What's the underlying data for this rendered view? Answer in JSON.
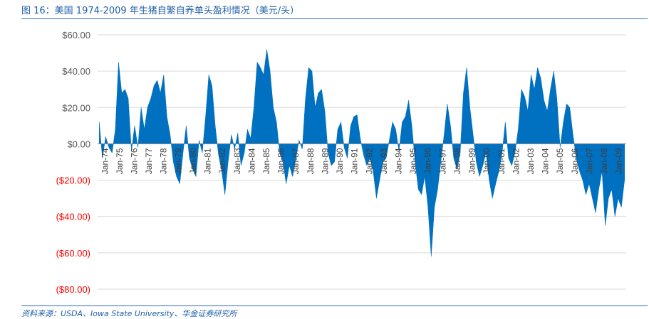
{
  "figure": {
    "title": "图 16：美国 1974-2009 年生猪自繁自养单头盈利情况（美元/头）",
    "source": "资料来源：USDA、Iowa State University、华金证券研究所"
  },
  "colors": {
    "area": "#0070c0",
    "negative_label": "#ff0000",
    "positive_label": "#595959",
    "grid": "#d9d9d9",
    "title": "#1f5fa8"
  },
  "chart_data": {
    "type": "area",
    "title": "",
    "xlabel": "",
    "ylabel": "",
    "ylim": [
      -80,
      60
    ],
    "grid": true,
    "legend": "none",
    "y_ticks": [
      {
        "value": 60,
        "label": "$60.00"
      },
      {
        "value": 40,
        "label": "$40.00"
      },
      {
        "value": 20,
        "label": "$20.00"
      },
      {
        "value": 0,
        "label": "$0.00"
      },
      {
        "value": -20,
        "label": "($20.00)"
      },
      {
        "value": -40,
        "label": "($40.00)"
      },
      {
        "value": -60,
        "label": "($60.00)"
      },
      {
        "value": -80,
        "label": "($80.00)"
      }
    ],
    "x_tick_labels": [
      "Jan-74",
      "Jan-75",
      "Jan-76",
      "Jan-77",
      "Jan-78",
      "Jan-79",
      "Jan-80",
      "Jan-81",
      "Jan-82",
      "Jan-83",
      "Jan-84",
      "Jan-85",
      "Jan-86",
      "Jan-87",
      "Jan-88",
      "Jan-89",
      "Jan-90",
      "Jan-91",
      "Jan-92",
      "Jan-93",
      "Jan-94",
      "Jan-95",
      "Jan-96",
      "Jan-97",
      "Jan-98",
      "Jan-99",
      "Jan-00",
      "Jan-01",
      "Jan-02",
      "Jan-03",
      "Jan-04",
      "Jan-05",
      "Jan-06",
      "Jan-07",
      "Jan-08",
      "Jan-09"
    ],
    "series": [
      {
        "x_start": "1974-01",
        "interval": "quarter",
        "values": [
          12,
          -8,
          4,
          -2,
          -5,
          8,
          45,
          28,
          30,
          25,
          -4,
          10,
          -2,
          20,
          8,
          20,
          25,
          32,
          35,
          28,
          38,
          15,
          5,
          -10,
          -18,
          -22,
          -5,
          10,
          -8,
          -14,
          -18,
          2,
          -5,
          15,
          38,
          32,
          10,
          -6,
          -15,
          -28,
          -10,
          5,
          -3,
          6,
          -12,
          -5,
          8,
          3,
          20,
          45,
          42,
          38,
          52,
          40,
          20,
          12,
          -5,
          -10,
          -22,
          -12,
          -18,
          -8,
          2,
          -3,
          25,
          42,
          40,
          20,
          28,
          30,
          18,
          -5,
          -12,
          -10,
          8,
          12,
          -2,
          -8,
          10,
          15,
          16,
          3,
          -6,
          -12,
          -8,
          -15,
          -30,
          -20,
          -10,
          -8,
          2,
          12,
          8,
          -4,
          12,
          15,
          24,
          10,
          -10,
          -25,
          -28,
          -18,
          -35,
          -62,
          -35,
          -25,
          -10,
          5,
          22,
          10,
          -8,
          -14,
          -5,
          28,
          42,
          20,
          5,
          -10,
          -18,
          -12,
          -5,
          -20,
          -30,
          -22,
          -15,
          -5,
          12,
          -8,
          -12,
          -5,
          8,
          30,
          26,
          18,
          38,
          30,
          42,
          36,
          24,
          18,
          30,
          40,
          25,
          -2,
          12,
          22,
          20,
          5,
          -8,
          -15,
          -20,
          -28,
          -22,
          -30,
          -38,
          -25,
          -15,
          -45,
          -30,
          -25,
          -40,
          -30,
          -35,
          -20
        ]
      }
    ]
  }
}
